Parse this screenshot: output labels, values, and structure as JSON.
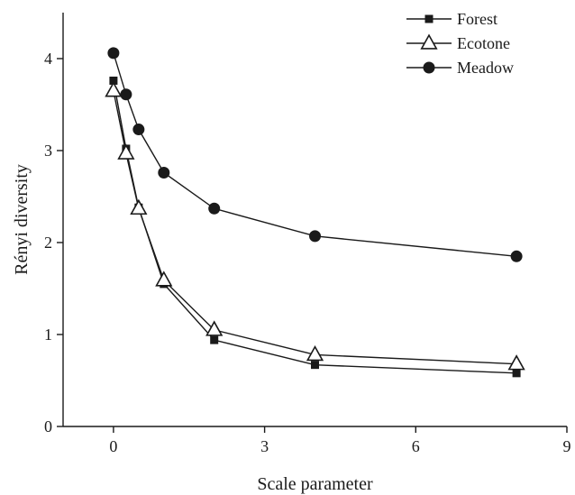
{
  "chart_data": {
    "type": "line",
    "xlabel": "Scale parameter",
    "ylabel": "Rényi diversity",
    "xlim": [
      -1,
      9
    ],
    "ylim": [
      0,
      4.5
    ],
    "xticks": [
      0,
      3,
      6,
      9
    ],
    "yticks": [
      0,
      1,
      2,
      3,
      4
    ],
    "xtick_labels": [
      "0",
      "3",
      "6",
      "9"
    ],
    "ytick_labels": [
      "0",
      "1",
      "2",
      "3",
      "4"
    ],
    "grid": false,
    "legend_position": "top-right",
    "series": [
      {
        "name": "Forest",
        "marker": "square",
        "color": "#1a1a1a",
        "x": [
          0,
          0.25,
          0.5,
          1,
          2,
          4,
          8
        ],
        "y": [
          3.76,
          3.02,
          2.38,
          1.55,
          0.94,
          0.67,
          0.58
        ]
      },
      {
        "name": "Ecotone",
        "marker": "triangle-open",
        "color": "#1a1a1a",
        "x": [
          0,
          0.25,
          0.5,
          1,
          2,
          4,
          8
        ],
        "y": [
          3.65,
          2.97,
          2.37,
          1.59,
          1.05,
          0.78,
          0.68
        ]
      },
      {
        "name": "Meadow",
        "marker": "circle",
        "color": "#1a1a1a",
        "x": [
          0,
          0.25,
          0.5,
          1,
          2,
          4,
          8
        ],
        "y": [
          4.06,
          3.61,
          3.23,
          2.76,
          2.37,
          2.07,
          1.85
        ]
      }
    ]
  }
}
